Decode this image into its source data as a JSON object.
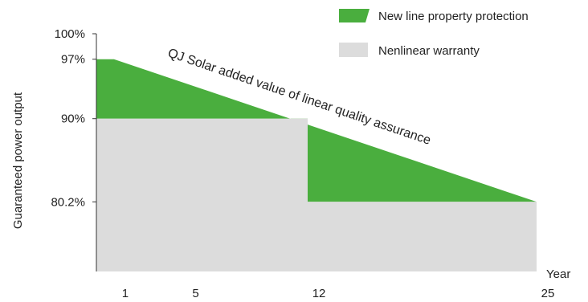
{
  "chart_data": {
    "type": "area",
    "title": "",
    "xlabel": "Year",
    "ylabel": "Guaranteed power output",
    "x_ticks": [
      "1",
      "5",
      "12",
      "25"
    ],
    "y_ticks": [
      "100%",
      "97%",
      "90%",
      "80.2%"
    ],
    "xlim": [
      0,
      25
    ],
    "ylim": [
      72,
      100
    ],
    "grid": false,
    "legend_position": "top-right",
    "annotation": "QJ Solar added value of linear quality assurance",
    "series": [
      {
        "name": "New line property protection",
        "color": "#4aae3e",
        "points": [
          [
            1,
            97
          ],
          [
            25,
            80.2
          ]
        ]
      },
      {
        "name": "Nenlinear warranty",
        "color": "#dcdcdc",
        "points": [
          [
            1,
            90
          ],
          [
            12,
            90
          ],
          [
            12,
            80.2
          ],
          [
            25,
            80.2
          ]
        ]
      }
    ]
  }
}
